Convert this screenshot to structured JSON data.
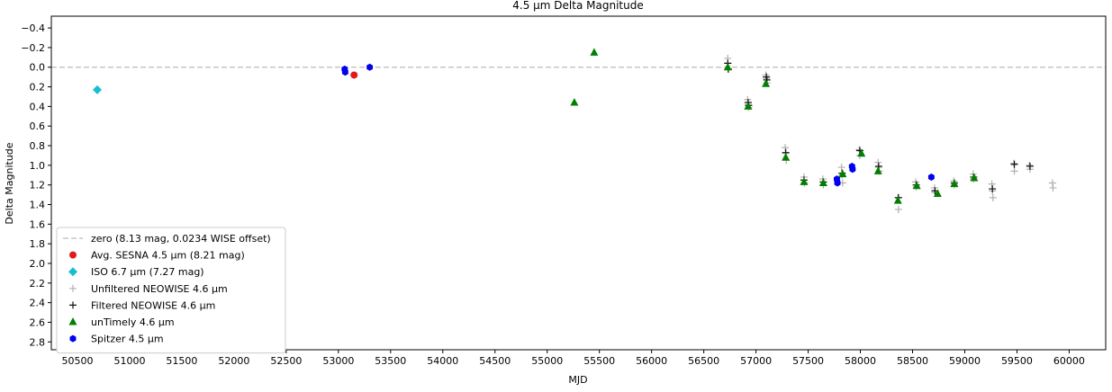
{
  "chart_data": {
    "type": "scatter",
    "title": "4.5 μm Delta Magnitude",
    "xlabel": "MJD",
    "ylabel": "Delta Magnitude",
    "xlim": [
      50250,
      60350
    ],
    "ylim": [
      2.88,
      -0.52
    ],
    "y_inverted": true,
    "x_ticks": [
      50500,
      51000,
      51500,
      52000,
      52500,
      53000,
      53500,
      54000,
      54500,
      55000,
      55500,
      56000,
      56500,
      57000,
      57500,
      58000,
      58500,
      59000,
      59500,
      60000
    ],
    "x_tick_labels": [
      "50500",
      "51000",
      "51500",
      "52000",
      "52500",
      "53000",
      "53500",
      "54000",
      "54500",
      "55000",
      "55500",
      "56000",
      "56500",
      "57000",
      "57500",
      "58000",
      "58500",
      "59000",
      "59500",
      "60000"
    ],
    "y_ticks": [
      -0.4,
      -0.2,
      0.0,
      0.2,
      0.4,
      0.6,
      0.8,
      1.0,
      1.2,
      1.4,
      1.6,
      1.8,
      2.0,
      2.2,
      2.4,
      2.6,
      2.8
    ],
    "y_tick_labels": [
      "−0.4",
      "−0.2",
      "0.0",
      "0.2",
      "0.4",
      "0.6",
      "0.8",
      "1.0",
      "1.2",
      "1.4",
      "1.6",
      "1.8",
      "2.0",
      "2.2",
      "2.4",
      "2.6",
      "2.8"
    ],
    "grid": false,
    "legend_position": "lower-left",
    "zero_line": {
      "y": 0.0,
      "color": "#bbbbbb",
      "style": "dashed",
      "name": "zero (8.13 mag, 0.0234 WISE offset)"
    },
    "series": [
      {
        "name": "Avg. SESNA 4.5 μm (8.21 mag)",
        "marker": "circle",
        "color": "#e31a1c",
        "points": [
          [
            53150,
            0.08
          ]
        ]
      },
      {
        "name": "ISO 6.7 μm (7.27 mag)",
        "marker": "diamond",
        "color": "#17becf",
        "points": [
          [
            50690,
            0.23
          ]
        ]
      },
      {
        "name": "Unfiltered NEOWISE 4.6 μm",
        "marker": "plus",
        "color": "#b0b0b0",
        "points": [
          [
            56730,
            -0.09
          ],
          [
            56730,
            -0.04
          ],
          [
            56735,
            0.02
          ],
          [
            56920,
            0.33
          ],
          [
            56925,
            0.38
          ],
          [
            56930,
            0.41
          ],
          [
            57095,
            0.08
          ],
          [
            57100,
            0.12
          ],
          [
            57105,
            0.16
          ],
          [
            57280,
            0.82
          ],
          [
            57285,
            0.88
          ],
          [
            57290,
            0.95
          ],
          [
            57460,
            1.12
          ],
          [
            57465,
            1.18
          ],
          [
            57640,
            1.14
          ],
          [
            57645,
            1.2
          ],
          [
            57820,
            1.02
          ],
          [
            57825,
            1.1
          ],
          [
            57830,
            1.18
          ],
          [
            57990,
            0.84
          ],
          [
            57995,
            0.9
          ],
          [
            58170,
            0.97
          ],
          [
            58175,
            1.02
          ],
          [
            58180,
            1.06
          ],
          [
            58360,
            1.33
          ],
          [
            58365,
            1.45
          ],
          [
            58530,
            1.17
          ],
          [
            58535,
            1.22
          ],
          [
            58710,
            1.23
          ],
          [
            58715,
            1.28
          ],
          [
            58895,
            1.16
          ],
          [
            58900,
            1.2
          ],
          [
            59080,
            1.09
          ],
          [
            59085,
            1.14
          ],
          [
            59260,
            1.19
          ],
          [
            59265,
            1.26
          ],
          [
            59270,
            1.33
          ],
          [
            59470,
            0.98
          ],
          [
            59475,
            1.06
          ],
          [
            59620,
            1.0
          ],
          [
            59625,
            1.04
          ],
          [
            59840,
            1.18
          ],
          [
            59845,
            1.23
          ]
        ]
      },
      {
        "name": "Filtered NEOWISE 4.6 μm",
        "marker": "plus",
        "color": "#111111",
        "points": [
          [
            56730,
            -0.04
          ],
          [
            56735,
            0.02
          ],
          [
            56925,
            0.36
          ],
          [
            56930,
            0.39
          ],
          [
            57100,
            0.1
          ],
          [
            57105,
            0.13
          ],
          [
            57285,
            0.87
          ],
          [
            57460,
            1.15
          ],
          [
            57645,
            1.17
          ],
          [
            57825,
            1.08
          ],
          [
            57995,
            0.85
          ],
          [
            58175,
            1.01
          ],
          [
            58365,
            1.33
          ],
          [
            58535,
            1.2
          ],
          [
            58715,
            1.26
          ],
          [
            58900,
            1.18
          ],
          [
            59085,
            1.12
          ],
          [
            59265,
            1.24
          ],
          [
            59475,
            0.99
          ],
          [
            59625,
            1.01
          ]
        ]
      },
      {
        "name": "unTimely 4.6 μm",
        "marker": "triangle",
        "color": "#008000",
        "points": [
          [
            55260,
            0.36
          ],
          [
            55450,
            -0.15
          ],
          [
            56730,
            0.0
          ],
          [
            56925,
            0.4
          ],
          [
            57095,
            0.17
          ],
          [
            57285,
            0.92
          ],
          [
            57460,
            1.17
          ],
          [
            57645,
            1.18
          ],
          [
            57830,
            1.09
          ],
          [
            58010,
            0.88
          ],
          [
            58170,
            1.06
          ],
          [
            58360,
            1.36
          ],
          [
            58540,
            1.21
          ],
          [
            58740,
            1.29
          ],
          [
            58900,
            1.19
          ],
          [
            59090,
            1.13
          ]
        ]
      },
      {
        "name": "Spitzer 4.5 μm",
        "marker": "hexagon",
        "color": "#0000ee",
        "points": [
          [
            53060,
            0.02
          ],
          [
            53065,
            0.05
          ],
          [
            53300,
            0.0
          ],
          [
            57775,
            1.14
          ],
          [
            57780,
            1.18
          ],
          [
            57920,
            1.01
          ],
          [
            57925,
            1.04
          ],
          [
            58680,
            1.12
          ]
        ]
      }
    ]
  }
}
